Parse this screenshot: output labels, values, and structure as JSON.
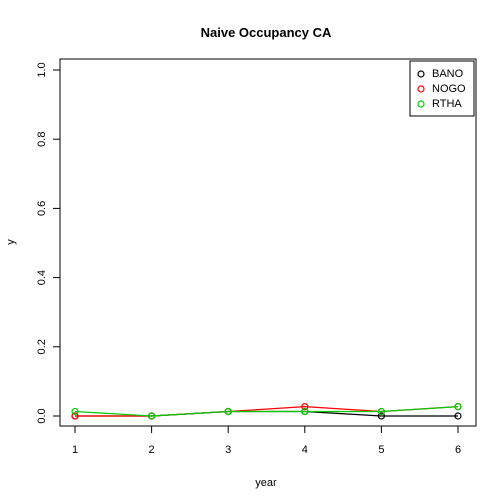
{
  "chart_data": {
    "type": "line",
    "title": "Naive Occupancy CA",
    "xlabel": "year",
    "ylabel": "y",
    "x": [
      1,
      2,
      3,
      4,
      5,
      6
    ],
    "xlim": [
      1,
      6
    ],
    "ylim": [
      0,
      1
    ],
    "xticks": [
      1,
      2,
      3,
      4,
      5,
      6
    ],
    "yticks": [
      0.0,
      0.2,
      0.4,
      0.6,
      0.8,
      1.0
    ],
    "ytick_labels": [
      "0.0",
      "0.2",
      "0.4",
      "0.6",
      "0.8",
      "1.0"
    ],
    "grid": false,
    "legend_position": "top-right",
    "series": [
      {
        "name": "BANO",
        "color": "#000000",
        "values": [
          0.0,
          0.0,
          0.013,
          0.013,
          0.0,
          0.0
        ]
      },
      {
        "name": "NOGO",
        "color": "#ff0000",
        "values": [
          0.0,
          0.0,
          0.013,
          0.027,
          0.013,
          0.027
        ]
      },
      {
        "name": "RTHA",
        "color": "#00cd00",
        "values": [
          0.013,
          0.0,
          0.013,
          0.013,
          0.013,
          0.027
        ]
      }
    ]
  }
}
